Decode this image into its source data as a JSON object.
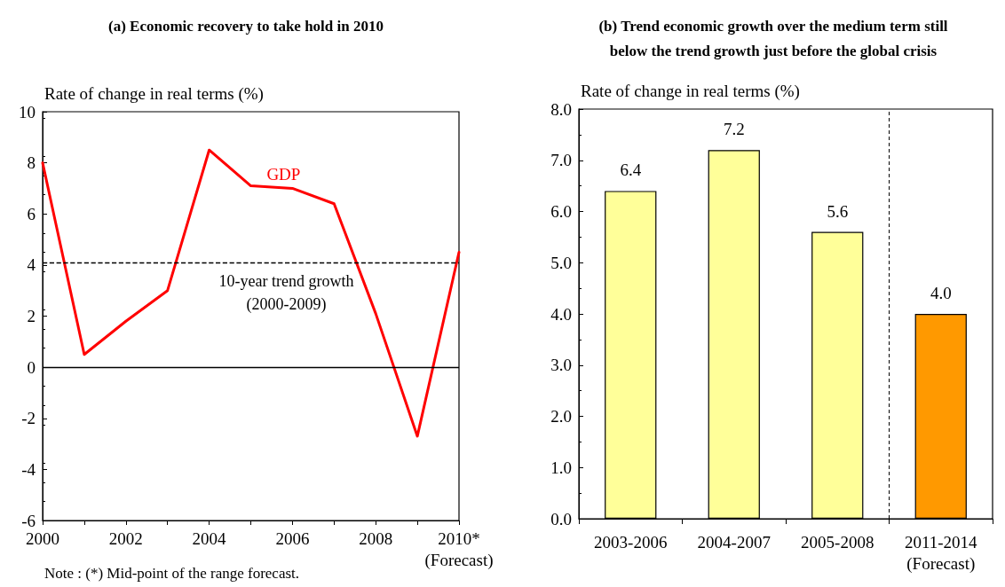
{
  "chart_data": [
    {
      "type": "line",
      "title": "(a) Economic recovery to take hold in 2010",
      "ylabel": "Rate of change in real terms (%)",
      "x": [
        2000,
        2001,
        2002,
        2003,
        2004,
        2005,
        2006,
        2007,
        2008,
        2009,
        2010
      ],
      "series": [
        {
          "name": "GDP",
          "color": "#ff0000",
          "values": [
            8.0,
            0.5,
            1.8,
            3.0,
            8.5,
            7.1,
            7.0,
            6.4,
            2.1,
            -2.7,
            4.5
          ]
        }
      ],
      "xlim": [
        2000,
        2010
      ],
      "xticks": [
        2000,
        {
          "value": 2001,
          "label": null
        },
        2002,
        {
          "value": 2003,
          "label": null
        },
        2004,
        {
          "value": 2005,
          "label": null
        },
        2006,
        {
          "value": 2007,
          "label": null
        },
        2008,
        {
          "value": 2009,
          "label": null
        },
        {
          "value": 2010,
          "label": "2010*\n(Forecast)"
        }
      ],
      "ylim": [
        -6,
        10
      ],
      "yticks": [
        -6,
        -4,
        -2,
        0,
        2,
        4,
        6,
        8,
        10
      ],
      "ref_lines": [
        {
          "axis": "y",
          "value": 4.1,
          "label": "10-year trend growth\n(2000-2009)",
          "color": "#000000",
          "line_style": "dashed"
        },
        {
          "axis": "y",
          "value": 0,
          "color": "#000000",
          "line_style": "solid"
        }
      ],
      "annotations": [
        "Note : (*) Mid-point of the range forecast."
      ],
      "marker": "none",
      "line_style": "solid",
      "grid": false,
      "legend": false
    },
    {
      "type": "bar",
      "title": "(b) Trend economic growth over the medium term still\nbelow the trend growth just before the global crisis",
      "ylabel": "Rate of change in real terms (%)",
      "categories": [
        "2003-2006",
        "2004-2007",
        "2005-2008",
        "2011-2014\n(Forecast)"
      ],
      "values": [
        6.4,
        7.2,
        5.6,
        4.0
      ],
      "colors": [
        "#ffff99",
        "#ffff99",
        "#ffff99",
        "#ff9900"
      ],
      "value_labels": [
        "6.4",
        "7.2",
        "5.6",
        "4.0"
      ],
      "ylim": [
        0,
        8
      ],
      "yticks": [
        {
          "value": 0,
          "label": "0.0"
        },
        {
          "value": 1,
          "label": "1.0"
        },
        {
          "value": 2,
          "label": "2.0"
        },
        {
          "value": 3,
          "label": "3.0"
        },
        {
          "value": 4,
          "label": "4.0"
        },
        {
          "value": 5,
          "label": "5.0"
        },
        {
          "value": 6,
          "label": "6.0"
        },
        {
          "value": 7,
          "label": "7.0"
        },
        {
          "value": 8,
          "label": "8.0"
        }
      ],
      "grid": false,
      "legend": false
    }
  ]
}
